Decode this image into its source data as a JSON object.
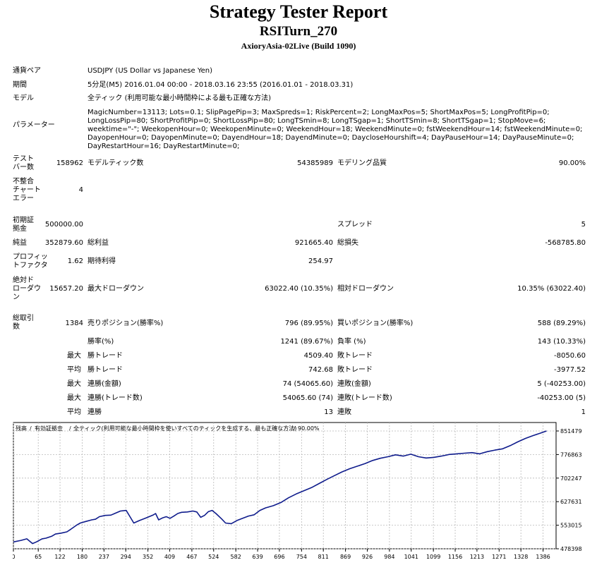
{
  "report": {
    "title": "Strategy Tester Report",
    "ea_name": "RSITurn_270",
    "server_build": "AxioryAsia-02Live (Build 1090)"
  },
  "summary": {
    "symbol_label": "通貨ペア",
    "symbol_value": "USDJPY (US Dollar vs Japanese Yen)",
    "period_label": "期間",
    "period_value": "5分足(M5) 2016.01.04 00:00 - 2018.03.16 23:55 (2016.01.01 - 2018.03.31)",
    "model_label": "モデル",
    "model_value": "全ティック (利用可能な最小時間枠による最も正確な方法)",
    "params_label": "パラメーター",
    "params_value": "MagicNumber=13113; Lots=0.1; SlipPagePip=3; MaxSpreds=1; RiskPercent=2; LongMaxPos=5; ShortMaxPos=5; LongProfitPip=0; LongLossPip=80; ShortProfitPip=0; ShortLossPip=80; LongTSmin=8; LongTSgap=1; ShortTSmin=8; ShortTSgap=1; StopMove=6; weektime=\"-\"; WeekopenHour=0; WeekopenMinute=0; WeekendHour=18; WeekendMinute=0; fstWeekendHour=14; fstWeekendMinute=0; DayopenHour=0; DayopenMinute=0; DayendHour=18; DayendMinute=0; DaycloseHourshift=4; DayPauseHour=14; DayPauseMinute=0; DayRestartHour=16; DayRestartMinute=0;"
  },
  "stats": {
    "bars_label": "テスト\nバー数",
    "bars_value": "158962",
    "ticks_label": "モデルティック数",
    "ticks_value": "54385989",
    "quality_label": "モデリング品質",
    "quality_value": "90.00%",
    "mismatch_label": "不整合\nチャート\nエラー",
    "mismatch_value": "4",
    "deposit_label": "初期証\n拠金",
    "deposit_value": "500000.00",
    "spread_label": "スプレッド",
    "spread_value": "5",
    "net_label": "純益",
    "net_value": "352879.60",
    "gross_profit_label": "総利益",
    "gross_profit_value": "921665.40",
    "gross_loss_label": "総損失",
    "gross_loss_value": "-568785.80",
    "pf_label": "プロフィッ\nトファクタ",
    "pf_value": "1.62",
    "payoff_label": "期待利得",
    "payoff_value": "254.97",
    "abs_dd_label": "絶対ド\nローダウ\nン",
    "abs_dd_value": "15657.20",
    "max_dd_label": "最大ドローダウン",
    "max_dd_value": "63022.40 (10.35%)",
    "rel_dd_label": "相対ドローダウン",
    "rel_dd_value": "10.35% (63022.40)",
    "total_trades_label": "総取引\n数",
    "total_trades_value": "1384",
    "short_label": "売りポジション(勝率%)",
    "short_value": "796 (89.95%)",
    "long_label": "買いポジション(勝率%)",
    "long_value": "588 (89.29%)",
    "win_label": "勝率(%)",
    "win_value": "1241 (89.67%)",
    "loss_label": "負率 (%)",
    "loss_value": "143 (10.33%)",
    "max_prefix": "最大",
    "avg_prefix": "平均",
    "largest_win_label": "勝トレード",
    "largest_win_value": "4509.40",
    "largest_loss_label": "敗トレード",
    "largest_loss_value": "-8050.60",
    "avg_win_label": "勝トレード",
    "avg_win_value": "742.68",
    "avg_loss_label": "敗トレード",
    "avg_loss_value": "-3977.52",
    "cons_wins_money_label": "連勝(金額)",
    "cons_wins_money_value": "74 (54065.60)",
    "cons_losses_money_label": "連敗(金額)",
    "cons_losses_money_value": "5 (-40253.00)",
    "cons_wins_trades_label": "連勝(トレード数)",
    "cons_wins_trades_value": "54065.60 (74)",
    "cons_losses_trades_label": "連敗(トレード数)",
    "cons_losses_trades_value": "-40253.00 (5)",
    "avg_cons_wins_label": "連勝",
    "avg_cons_wins_value": "13",
    "avg_cons_losses_label": "連敗",
    "avg_cons_losses_value": "1"
  },
  "chart_data": {
    "type": "line",
    "legend": {
      "balance": "残高",
      "sep1": "/",
      "equity": "有効証拠金",
      "sep2": "/",
      "model": "全ティック(利用可能な最小時間枠を使いすべてのティックを生成する、最も正確な方法)",
      "sep3": "/",
      "quality": "90.00%"
    },
    "x_ticks": [
      "0",
      "65",
      "122",
      "180",
      "237",
      "294",
      "352",
      "409",
      "467",
      "524",
      "582",
      "639",
      "696",
      "754",
      "811",
      "869",
      "926",
      "984",
      "1041",
      "1099",
      "1156",
      "1213",
      "1271",
      "1328",
      "1386"
    ],
    "y_ticks": [
      "851479",
      "776863",
      "702247",
      "627631",
      "553015",
      "478398"
    ],
    "ylim": [
      478398,
      851479
    ],
    "xlim": [
      0,
      1420
    ],
    "grid": true,
    "colors": {
      "balance": "#0f1c8c",
      "equity": "#1a8a1a",
      "frame": "#000000",
      "grid": "#b8b8b8"
    },
    "series": [
      {
        "name": "残高",
        "x": [
          0,
          20,
          35,
          40,
          50,
          60,
          75,
          85,
          100,
          110,
          125,
          140,
          150,
          165,
          175,
          190,
          205,
          215,
          225,
          240,
          255,
          265,
          280,
          295,
          305,
          315,
          330,
          345,
          355,
          365,
          372,
          380,
          390,
          400,
          410,
          420,
          430,
          440,
          455,
          470,
          480,
          490,
          500,
          510,
          520,
          530,
          545,
          555,
          570,
          585,
          600,
          615,
          630,
          645,
          660,
          680,
          700,
          720,
          740,
          760,
          780,
          800,
          820,
          840,
          860,
          880,
          900,
          920,
          940,
          960,
          980,
          1000,
          1020,
          1040,
          1060,
          1080,
          1100,
          1120,
          1140,
          1160,
          1180,
          1200,
          1220,
          1240,
          1260,
          1280,
          1300,
          1320,
          1340,
          1360,
          1380,
          1395
        ],
        "y": [
          500000,
          505000,
          510000,
          505000,
          495000,
          500000,
          510000,
          512000,
          518000,
          525000,
          528000,
          532000,
          540000,
          553000,
          560000,
          565000,
          570000,
          572000,
          580000,
          584000,
          585000,
          590000,
          598000,
          600000,
          580000,
          560000,
          568000,
          575000,
          580000,
          585000,
          590000,
          570000,
          576000,
          580000,
          575000,
          582000,
          590000,
          594000,
          595000,
          598000,
          595000,
          578000,
          584000,
          596000,
          600000,
          590000,
          573000,
          560000,
          558000,
          568000,
          575000,
          582000,
          586000,
          600000,
          608000,
          615000,
          625000,
          640000,
          652000,
          662000,
          672000,
          685000,
          698000,
          710000,
          722000,
          732000,
          740000,
          748000,
          758000,
          765000,
          770000,
          776000,
          772000,
          778000,
          770000,
          766000,
          768000,
          772000,
          777000,
          779000,
          781000,
          783000,
          779000,
          786000,
          791000,
          795000,
          805000,
          817000,
          828000,
          837000,
          845000,
          851479
        ]
      }
    ]
  }
}
